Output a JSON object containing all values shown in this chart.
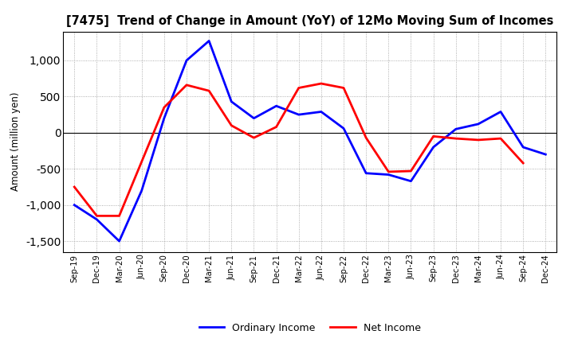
{
  "title": "[7475]  Trend of Change in Amount (YoY) of 12Mo Moving Sum of Incomes",
  "ylabel": "Amount (million yen)",
  "x_labels": [
    "Sep-19",
    "Dec-19",
    "Mar-20",
    "Jun-20",
    "Sep-20",
    "Dec-20",
    "Mar-21",
    "Jun-21",
    "Sep-21",
    "Dec-21",
    "Mar-22",
    "Jun-22",
    "Sep-22",
    "Dec-22",
    "Mar-23",
    "Jun-23",
    "Sep-23",
    "Dec-23",
    "Mar-24",
    "Jun-24",
    "Sep-24",
    "Dec-24"
  ],
  "ordinary_income": [
    -1000,
    -1200,
    -1500,
    -800,
    200,
    1000,
    1270,
    430,
    200,
    370,
    250,
    290,
    60,
    -560,
    -580,
    -670,
    -200,
    50,
    120,
    290,
    -200,
    -300
  ],
  "net_income": [
    -750,
    -1150,
    -1150,
    -400,
    350,
    660,
    580,
    100,
    -70,
    80,
    620,
    680,
    620,
    -70,
    -540,
    -530,
    -50,
    -80,
    -100,
    -80,
    -420,
    null
  ],
  "ylim": [
    -1650,
    1400
  ],
  "yticks": [
    -1500,
    -1000,
    -500,
    0,
    500,
    1000
  ],
  "line_color_ordinary": "#0000FF",
  "line_color_net": "#FF0000",
  "legend_ordinary": "Ordinary Income",
  "legend_net": "Net Income",
  "background_color": "#FFFFFF",
  "grid_color": "#999999"
}
